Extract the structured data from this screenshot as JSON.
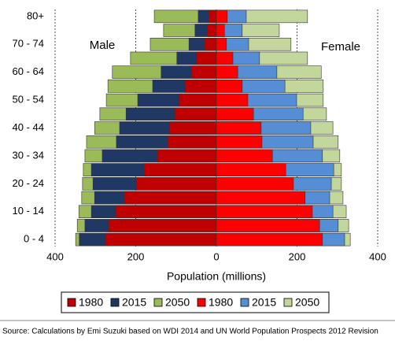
{
  "chart_data": {
    "type": "pyramid",
    "axis_label": "Population (millions)",
    "annotations": [
      "Male",
      "Female"
    ],
    "source": "Source: Calculations by Emi Suzuki based on WDI 2014 and UN World Population Prospects 2012 Revision",
    "categories": [
      "0 - 4",
      null,
      "10 - 14",
      null,
      "20 - 24",
      null,
      "30 - 34",
      null,
      "40 - 44",
      null,
      "50 - 54",
      null,
      "60 - 64",
      null,
      "70 - 74",
      null,
      "80+"
    ],
    "xlim": [
      -400,
      400
    ],
    "xticks": [
      {
        "value": -400,
        "label": "400"
      },
      {
        "value": -200,
        "label": "200"
      },
      0,
      200,
      400
    ],
    "grid": true,
    "series": [
      {
        "name": "1980",
        "color": "#c00000",
        "values": [
          -275,
          -267,
          -250,
          -228,
          -199,
          -180,
          -146,
          -121,
          -117,
          -103,
          -92,
          -78,
          -62,
          -49,
          -29,
          -23,
          -18
        ]
      },
      {
        "name": "2015",
        "color": "#1f3864",
        "values": [
          -340,
          -326,
          -310,
          -302,
          -306,
          -310,
          -283,
          -248,
          -240,
          -224,
          -195,
          -158,
          -137,
          -98,
          -68,
          -53,
          -45
        ]
      },
      {
        "name": "2050",
        "color": "#9bbb59",
        "values": [
          -349,
          -345,
          -341,
          -334,
          -332,
          -330,
          -326,
          -322,
          -302,
          -289,
          -273,
          -269,
          -258,
          -213,
          -164,
          -131,
          -154
        ]
      },
      {
        "name": "1980",
        "color": "#ff0000",
        "values": [
          263,
          256,
          238,
          220,
          191,
          172,
          139,
          113,
          111,
          92,
          78,
          64,
          53,
          41,
          25,
          20,
          27
        ]
      },
      {
        "name": "2015",
        "color": "#558ed5",
        "values": [
          318,
          302,
          289,
          281,
          285,
          291,
          263,
          240,
          234,
          215,
          199,
          170,
          150,
          107,
          80,
          64,
          74
        ]
      },
      {
        "name": "2050",
        "color": "#c3d69b",
        "values": [
          332,
          328,
          322,
          314,
          310,
          310,
          306,
          302,
          289,
          273,
          265,
          265,
          260,
          226,
          185,
          156,
          226
        ]
      }
    ]
  }
}
